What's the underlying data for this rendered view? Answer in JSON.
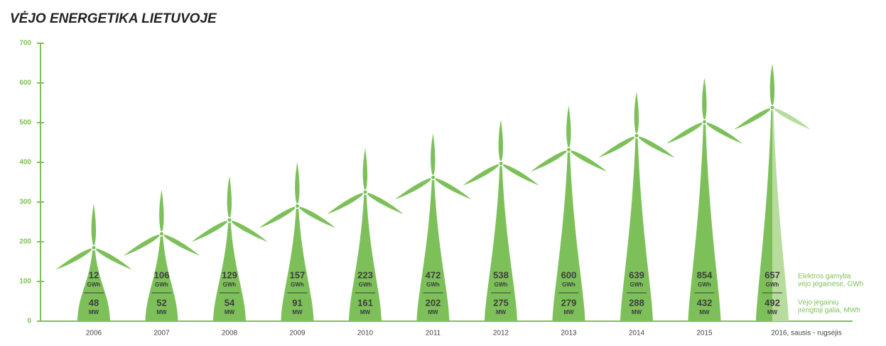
{
  "chart_data": {
    "type": "turbine",
    "title": "VĖJO ENERGETIKA LIETUVOJE",
    "categories": [
      "2006",
      "2007",
      "2008",
      "2009",
      "2010",
      "2011",
      "2012",
      "2013",
      "2014",
      "2015",
      "2016, sausis - rugsėjis"
    ],
    "values": [
      185,
      220,
      255,
      290,
      325,
      362,
      397,
      432,
      467,
      502,
      538
    ],
    "ylim": [
      0,
      700
    ],
    "yticks": [
      0,
      100,
      200,
      300,
      400,
      500,
      600,
      700
    ],
    "color": "#7dc05a",
    "partial_color": "#b7dc9e",
    "text_color": "#3c3c3c",
    "generation": {
      "values": [
        12,
        106,
        129,
        157,
        223,
        472,
        538,
        600,
        639,
        854,
        657
      ],
      "unit": "GWh",
      "legend": [
        "Elektros gamyba",
        "vėjo jėgainėse, GWh"
      ]
    },
    "capacity": {
      "values": [
        48,
        52,
        54,
        91,
        161,
        202,
        275,
        279,
        288,
        432,
        492
      ],
      "unit": "MW",
      "legend": [
        "Vėjo jėgainių",
        "įrengtoji galia, MWh"
      ]
    }
  }
}
